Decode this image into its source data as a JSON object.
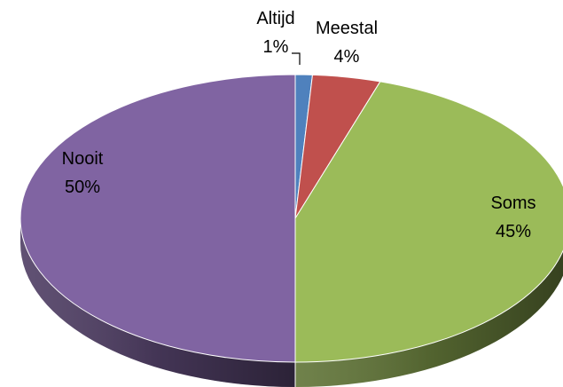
{
  "chart_data": {
    "type": "pie",
    "style": "3d",
    "title": "",
    "categories": [
      "Altijd",
      "Meestal",
      "Soms",
      "Nooit"
    ],
    "values": [
      1,
      4,
      45,
      50
    ],
    "value_labels": [
      "1%",
      "4%",
      "45%",
      "50%"
    ],
    "colors": [
      "#4F81BD",
      "#C0504D",
      "#9BBB59",
      "#8064A2"
    ],
    "legend": "none"
  }
}
